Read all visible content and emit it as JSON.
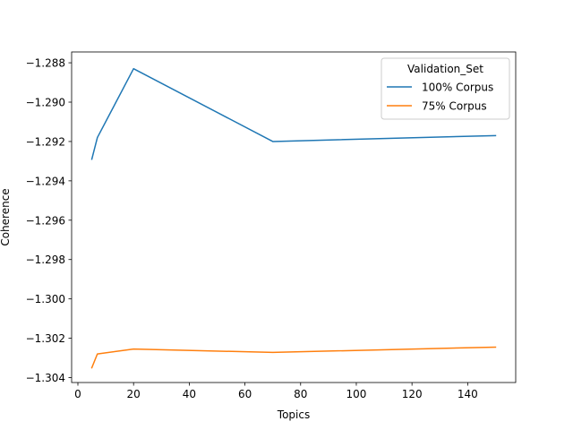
{
  "chart_data": {
    "type": "line",
    "xlabel": "Topics",
    "ylabel": "Coherence",
    "xlim": [
      -2.25,
      157.25
    ],
    "ylim": [
      -1.30425,
      -1.28745
    ],
    "xticks": [
      0,
      20,
      40,
      60,
      80,
      100,
      120,
      140
    ],
    "yticks": [
      -1.288,
      -1.29,
      -1.292,
      -1.294,
      -1.296,
      -1.298,
      -1.3,
      -1.302,
      -1.304
    ],
    "ytick_labels": [
      "−1.288",
      "−1.290",
      "−1.292",
      "−1.294",
      "−1.296",
      "−1.298",
      "−1.300",
      "−1.302",
      "−1.304"
    ],
    "legend": {
      "title": "Validation_Set",
      "placement": "top-right"
    },
    "grid": false,
    "series": [
      {
        "name": "100% Corpus",
        "color": "#1f77b4",
        "x": [
          5,
          7,
          20,
          70,
          150
        ],
        "y": [
          -1.2929,
          -1.2918,
          -1.2883,
          -1.292,
          -1.2917
        ]
      },
      {
        "name": "75% Corpus",
        "color": "#ff7f0e",
        "x": [
          5,
          7,
          20,
          70,
          150
        ],
        "y": [
          -1.3035,
          -1.3028,
          -1.30255,
          -1.30272,
          -1.30245
        ]
      }
    ]
  }
}
